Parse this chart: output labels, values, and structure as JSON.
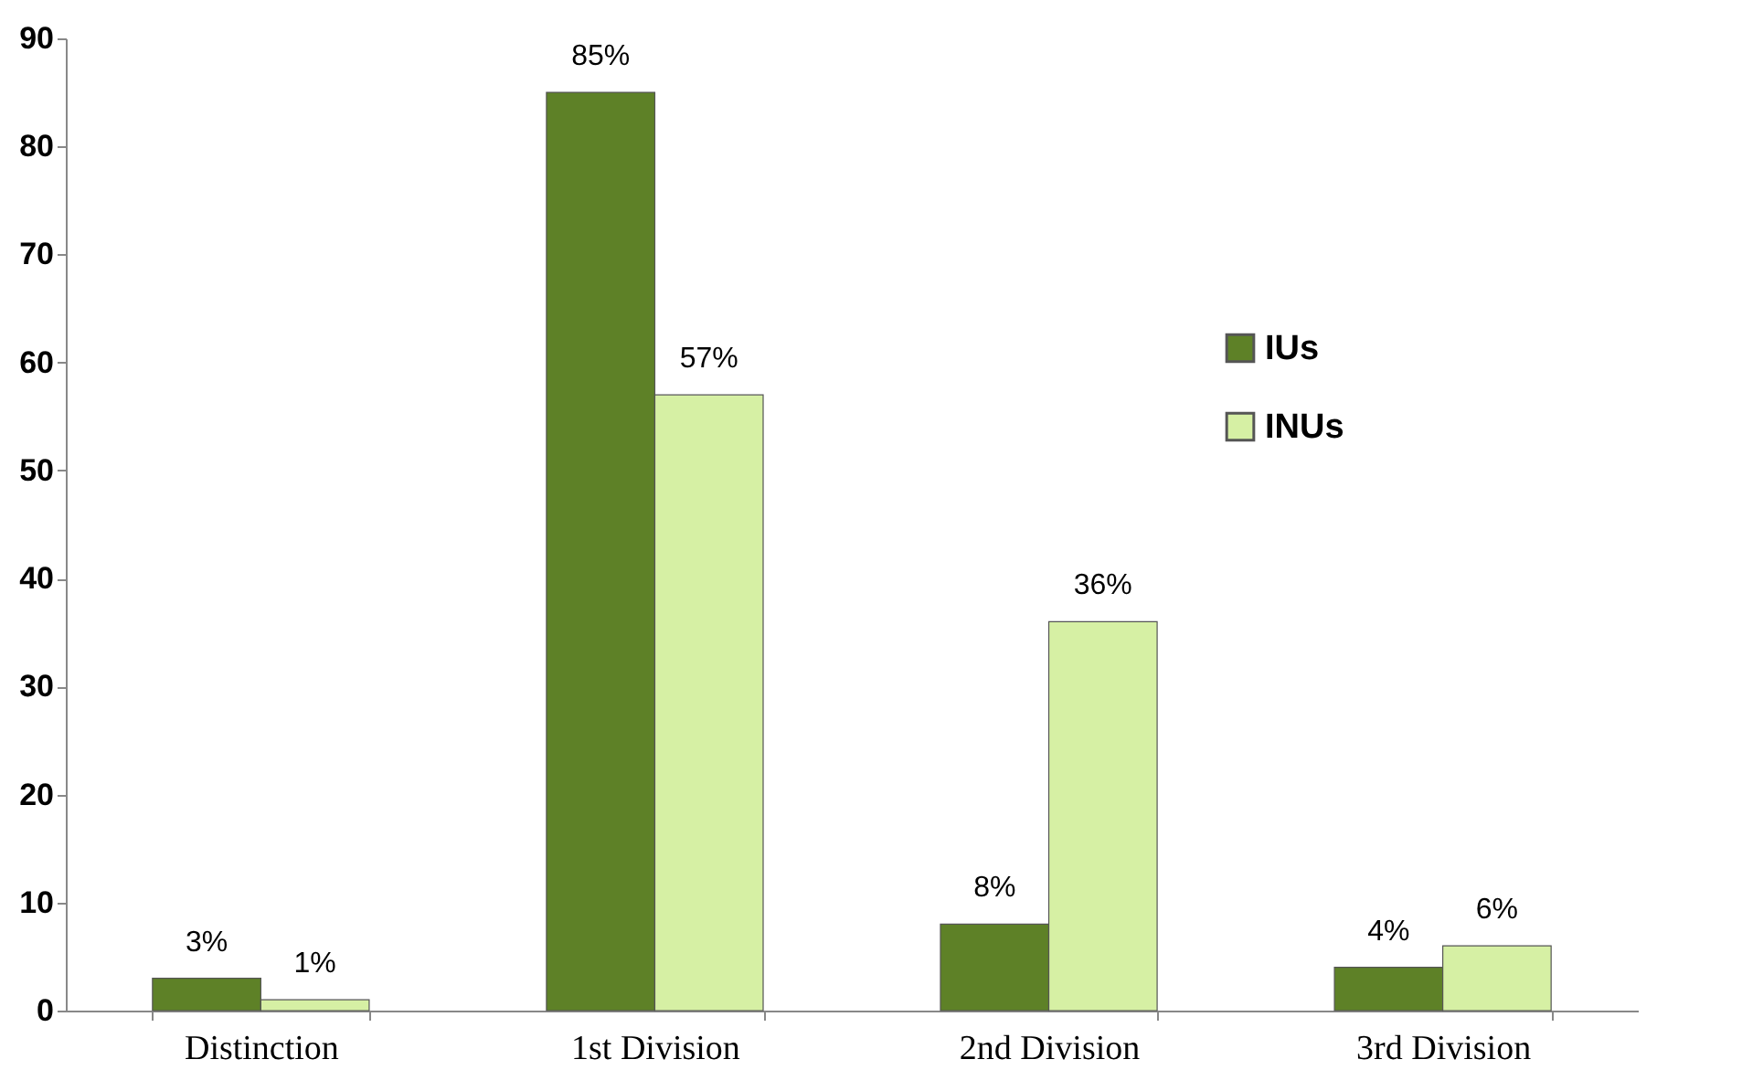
{
  "chart_data": {
    "type": "bar",
    "categories": [
      "Distinction",
      "1st Division",
      "2nd Division",
      "3rd Division"
    ],
    "series": [
      {
        "name": "IUs",
        "color": "#5e8127",
        "values": [
          3,
          85,
          8,
          4
        ],
        "value_labels": [
          "3%",
          "85%",
          "8%",
          "4%"
        ]
      },
      {
        "name": "INUs",
        "color": "#d6f0a4",
        "values": [
          1,
          57,
          36,
          6
        ],
        "value_labels": [
          "1%",
          "57%",
          "36%",
          "6%"
        ]
      }
    ],
    "ylim": [
      0,
      90
    ],
    "yticks": [
      0,
      10,
      20,
      30,
      40,
      50,
      60,
      70,
      80,
      90
    ],
    "legend": "top right"
  }
}
